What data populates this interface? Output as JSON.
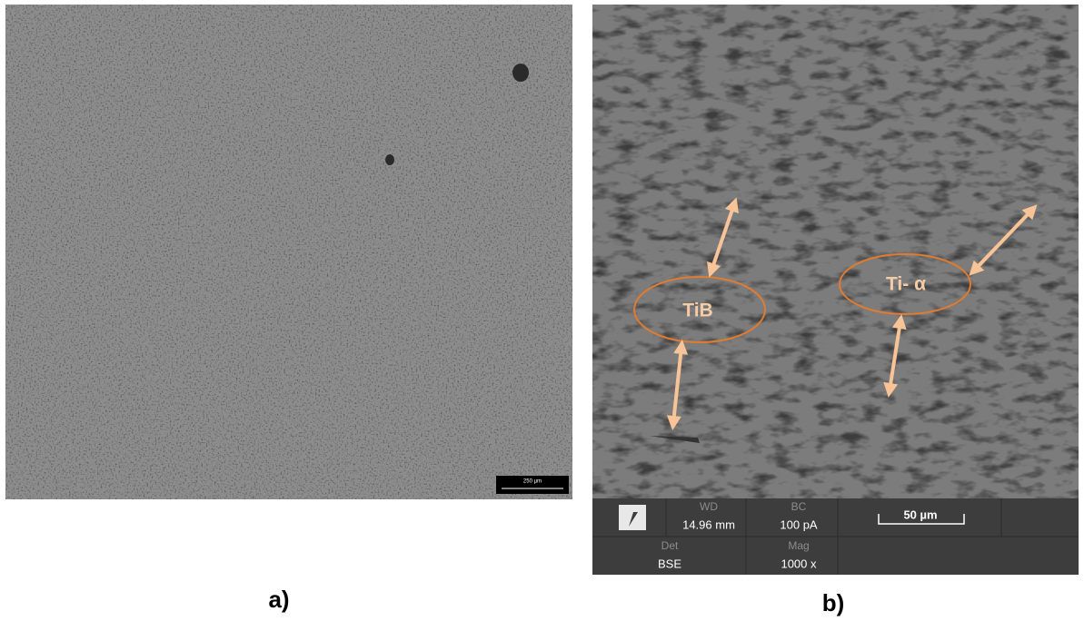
{
  "panels": [
    {
      "label": "a)",
      "scale_bar": "250 µm"
    },
    {
      "label": "b)",
      "annotations": [
        "TiB",
        "Ti- α"
      ],
      "info_bar": {
        "wd_label": "WD",
        "wd_value": "14.96 mm",
        "bc_label": "BC",
        "bc_value": "100 pA",
        "scale_bar": "50 µm",
        "det_label": "Det",
        "det_value": "BSE",
        "mag_label": "Mag",
        "mag_value": "1000 x"
      }
    }
  ]
}
